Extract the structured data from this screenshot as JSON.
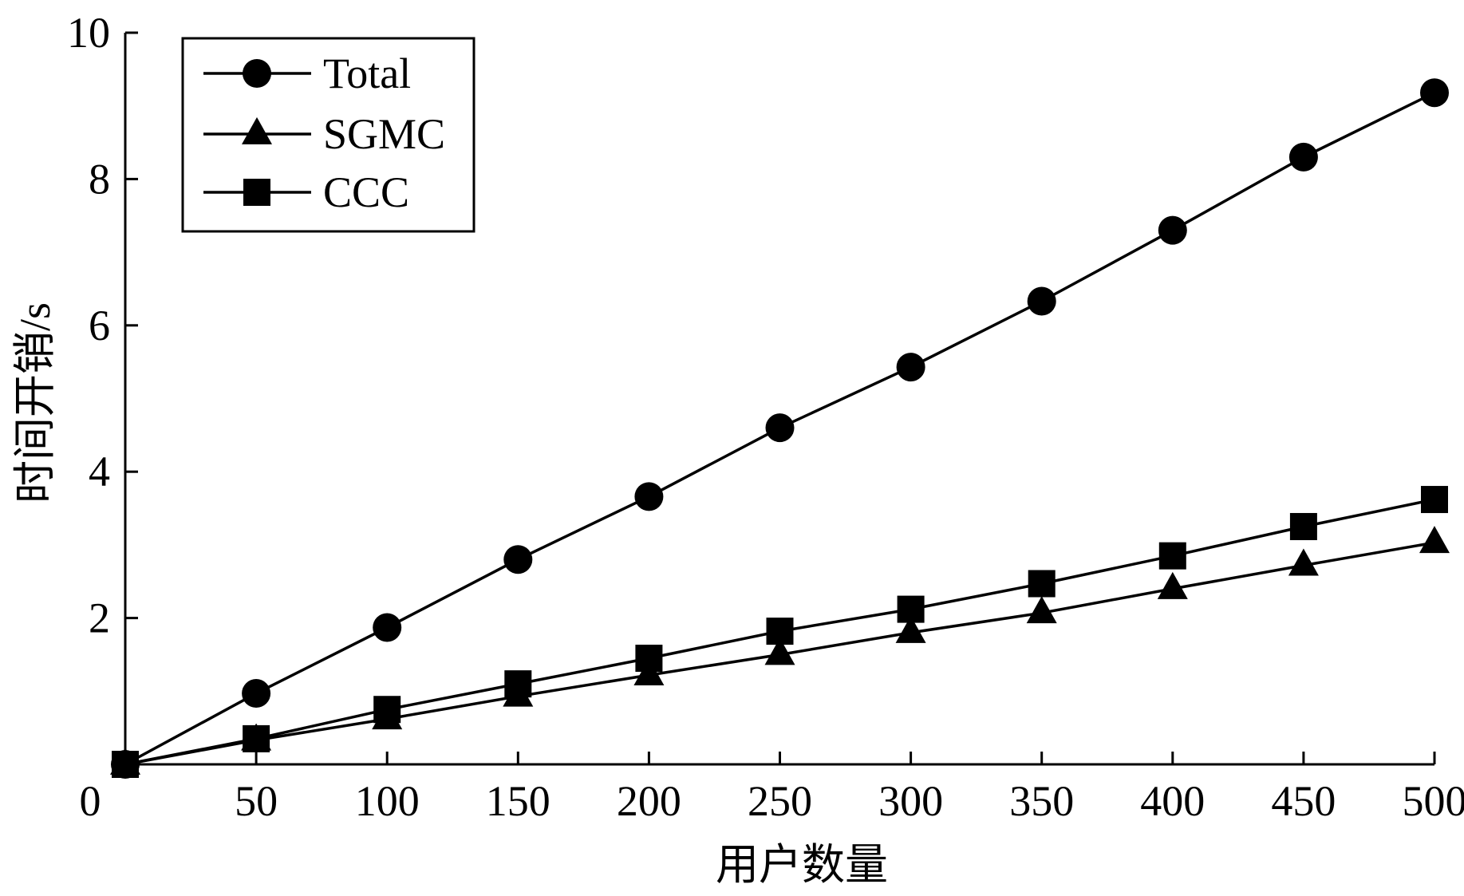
{
  "chart_data": {
    "type": "line",
    "title": "",
    "xlabel": "用户数量",
    "ylabel": "时间开销/s",
    "x": [
      0,
      50,
      100,
      150,
      200,
      250,
      300,
      350,
      400,
      450,
      500
    ],
    "xticks": [
      0,
      50,
      100,
      150,
      200,
      250,
      300,
      350,
      400,
      450,
      500
    ],
    "yticks": [
      2,
      4,
      6,
      8,
      10
    ],
    "xlim": [
      0,
      500
    ],
    "ylim": [
      0,
      10
    ],
    "grid": false,
    "legend_position": "top-left",
    "series": [
      {
        "name": "Total",
        "marker": "circle",
        "values": [
          0,
          0.97,
          1.87,
          2.8,
          3.66,
          4.6,
          5.43,
          6.33,
          7.3,
          8.3,
          9.18
        ]
      },
      {
        "name": "SGMC",
        "marker": "triangle",
        "values": [
          0,
          0.33,
          0.62,
          0.93,
          1.22,
          1.5,
          1.8,
          2.07,
          2.4,
          2.72,
          3.03
        ]
      },
      {
        "name": "CCC",
        "marker": "square",
        "values": [
          0,
          0.35,
          0.75,
          1.1,
          1.45,
          1.82,
          2.12,
          2.47,
          2.85,
          3.25,
          3.62
        ]
      }
    ]
  }
}
